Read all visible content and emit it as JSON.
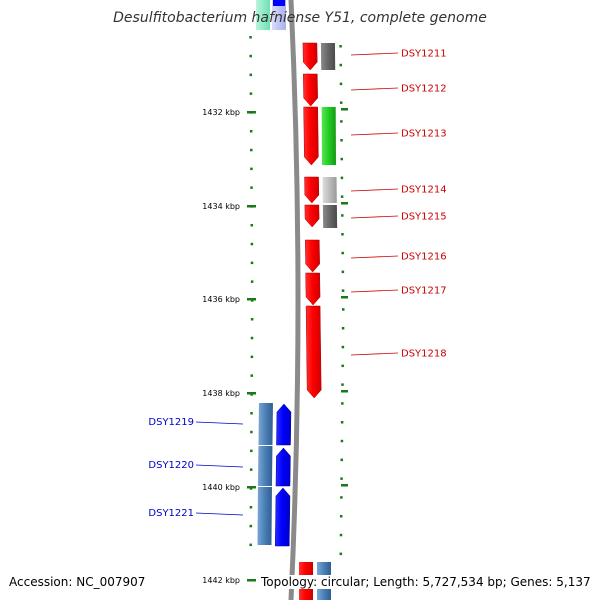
{
  "title": "Desulfitobacterium hafniense Y51, complete genome",
  "accession": "Accession: NC_007907",
  "topology": "Topology: circular; Length: 5,727,534 bp; Genes: 5,137",
  "ruler": {
    "unit": "kbp",
    "ticks": [
      "1432 kbp",
      "1434 kbp",
      "1436 kbp",
      "1438 kbp",
      "1440 kbp",
      "1442 kbp"
    ]
  },
  "colors": {
    "forward_gene": "#ff0000",
    "reverse_gene": "#0000ff",
    "forward_label": "#cc0000",
    "reverse_label": "#0000cc",
    "axis": "#888888",
    "tick": "#1a7a1a",
    "category_green": "#22cc22",
    "category_dark_gray": "#666666",
    "category_light_gray": "#bbbbbb",
    "category_steel_blue": "#4a7fb5"
  },
  "genes": [
    {
      "label": "DSY1211",
      "strand": "forward",
      "category_color": "#666666"
    },
    {
      "label": "DSY1212",
      "strand": "forward",
      "category_color": ""
    },
    {
      "label": "DSY1213",
      "strand": "forward",
      "category_color": "#22cc22"
    },
    {
      "label": "DSY1214",
      "strand": "forward",
      "category_color": "#bbbbbb"
    },
    {
      "label": "DSY1215",
      "strand": "forward",
      "category_color": "#666666"
    },
    {
      "label": "DSY1216",
      "strand": "forward",
      "category_color": ""
    },
    {
      "label": "DSY1217",
      "strand": "forward",
      "category_color": ""
    },
    {
      "label": "DSY1218",
      "strand": "forward",
      "category_color": ""
    },
    {
      "label": "DSY1219",
      "strand": "reverse",
      "category_color": "#4a7fb5"
    },
    {
      "label": "DSY1220",
      "strand": "reverse",
      "category_color": "#4a7fb5"
    },
    {
      "label": "DSY1221",
      "strand": "reverse",
      "category_color": "#4a7fb5"
    }
  ]
}
